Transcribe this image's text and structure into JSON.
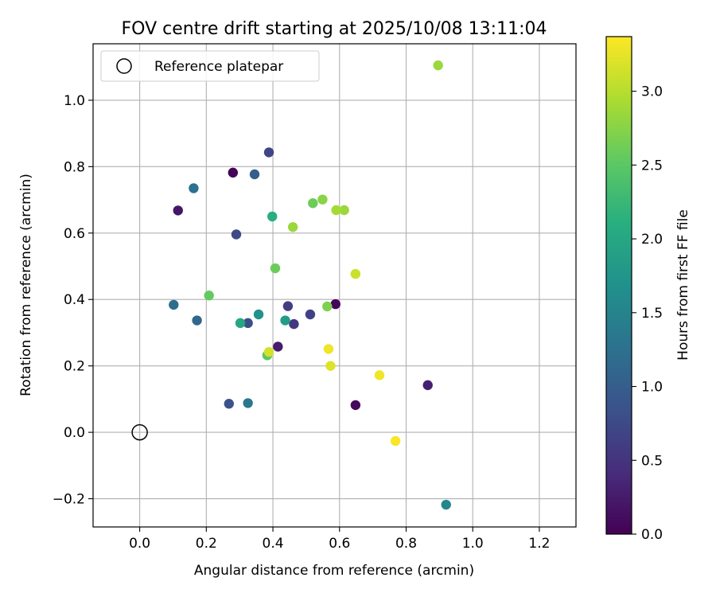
{
  "chart_data": {
    "type": "scatter",
    "title": "FOV centre drift starting at 2025/10/08 13:11:04",
    "xlabel": "Angular distance from reference (arcmin)",
    "ylabel": "Rotation from reference (arcmin)",
    "xlim": [
      -0.14,
      1.31
    ],
    "ylim": [
      -0.285,
      1.17
    ],
    "x_ticks": [
      0.0,
      0.2,
      0.4,
      0.6,
      0.8,
      1.0,
      1.2
    ],
    "x_tick_labels": [
      "0.0",
      "0.2",
      "0.4",
      "0.6",
      "0.8",
      "1.0",
      "1.2"
    ],
    "y_ticks": [
      -0.2,
      0.0,
      0.2,
      0.4,
      0.6,
      0.8,
      1.0
    ],
    "y_tick_labels": [
      "−0.2",
      "0.0",
      "0.2",
      "0.4",
      "0.6",
      "0.8",
      "1.0"
    ],
    "grid": true,
    "legend": {
      "placement": "upper-left",
      "entries": [
        "Reference platepar"
      ]
    },
    "reference_point": {
      "x": 0.0,
      "y": 0.0,
      "label": "Reference platepar"
    },
    "colorbar": {
      "label": "Hours from first FF file",
      "range": [
        0,
        3.37
      ],
      "ticks": [
        0.0,
        0.5,
        1.0,
        1.5,
        2.0,
        2.5,
        3.0
      ],
      "tick_labels": [
        "0.0",
        "0.5",
        "1.0",
        "1.5",
        "2.0",
        "2.5",
        "3.0"
      ],
      "colormap": "viridis"
    },
    "points": [
      {
        "x": 0.28,
        "y": 0.782,
        "c": 0.03
      },
      {
        "x": 0.588,
        "y": 0.386,
        "c": 0.05
      },
      {
        "x": 0.648,
        "y": 0.082,
        "c": 0.08
      },
      {
        "x": 0.115,
        "y": 0.668,
        "c": 0.2
      },
      {
        "x": 0.415,
        "y": 0.258,
        "c": 0.25
      },
      {
        "x": 0.865,
        "y": 0.142,
        "c": 0.3
      },
      {
        "x": 0.463,
        "y": 0.326,
        "c": 0.55
      },
      {
        "x": 0.445,
        "y": 0.38,
        "c": 0.6
      },
      {
        "x": 0.512,
        "y": 0.355,
        "c": 0.65
      },
      {
        "x": 0.388,
        "y": 0.843,
        "c": 0.7
      },
      {
        "x": 0.29,
        "y": 0.596,
        "c": 0.75
      },
      {
        "x": 0.325,
        "y": 0.329,
        "c": 0.8
      },
      {
        "x": 0.268,
        "y": 0.086,
        "c": 0.85
      },
      {
        "x": 0.345,
        "y": 0.777,
        "c": 1.0
      },
      {
        "x": 0.172,
        "y": 0.337,
        "c": 1.1
      },
      {
        "x": 0.102,
        "y": 0.384,
        "c": 1.2
      },
      {
        "x": 0.162,
        "y": 0.735,
        "c": 1.25
      },
      {
        "x": 0.325,
        "y": 0.088,
        "c": 1.35
      },
      {
        "x": 0.92,
        "y": -0.218,
        "c": 1.55
      },
      {
        "x": 0.357,
        "y": 0.355,
        "c": 1.7
      },
      {
        "x": 0.437,
        "y": 0.337,
        "c": 1.85
      },
      {
        "x": 0.302,
        "y": 0.329,
        "c": 2.0
      },
      {
        "x": 0.398,
        "y": 0.65,
        "c": 2.1
      },
      {
        "x": 0.383,
        "y": 0.232,
        "c": 2.5
      },
      {
        "x": 0.208,
        "y": 0.412,
        "c": 2.55
      },
      {
        "x": 0.407,
        "y": 0.494,
        "c": 2.6
      },
      {
        "x": 0.52,
        "y": 0.69,
        "c": 2.6
      },
      {
        "x": 0.563,
        "y": 0.379,
        "c": 2.7
      },
      {
        "x": 0.549,
        "y": 0.701,
        "c": 2.75
      },
      {
        "x": 0.46,
        "y": 0.618,
        "c": 2.85
      },
      {
        "x": 0.614,
        "y": 0.669,
        "c": 2.85
      },
      {
        "x": 0.59,
        "y": 0.669,
        "c": 2.9
      },
      {
        "x": 0.896,
        "y": 1.105,
        "c": 2.85
      },
      {
        "x": 0.648,
        "y": 0.477,
        "c": 3.1
      },
      {
        "x": 0.388,
        "y": 0.242,
        "c": 3.15
      },
      {
        "x": 0.573,
        "y": 0.2,
        "c": 3.2
      },
      {
        "x": 0.567,
        "y": 0.251,
        "c": 3.3
      },
      {
        "x": 0.72,
        "y": 0.172,
        "c": 3.3
      },
      {
        "x": 0.768,
        "y": -0.026,
        "c": 3.35
      }
    ]
  }
}
